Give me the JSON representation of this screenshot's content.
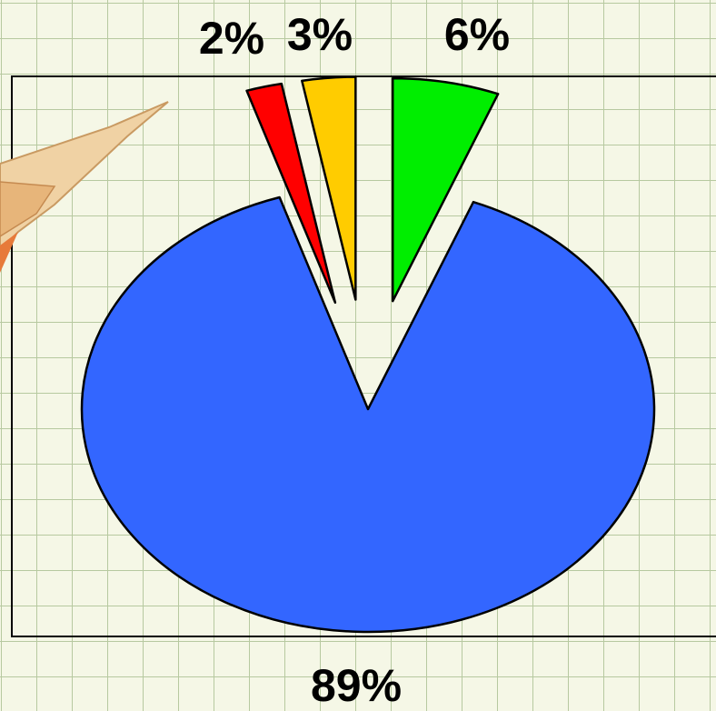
{
  "chart_data": {
    "type": "pie",
    "values": [
      6,
      89,
      2,
      3
    ],
    "value_labels": [
      "6%",
      "89%",
      "2%",
      "3%"
    ],
    "colors": [
      "#00ee00",
      "#3366ff",
      "#ff0000",
      "#ffcc00"
    ]
  }
}
